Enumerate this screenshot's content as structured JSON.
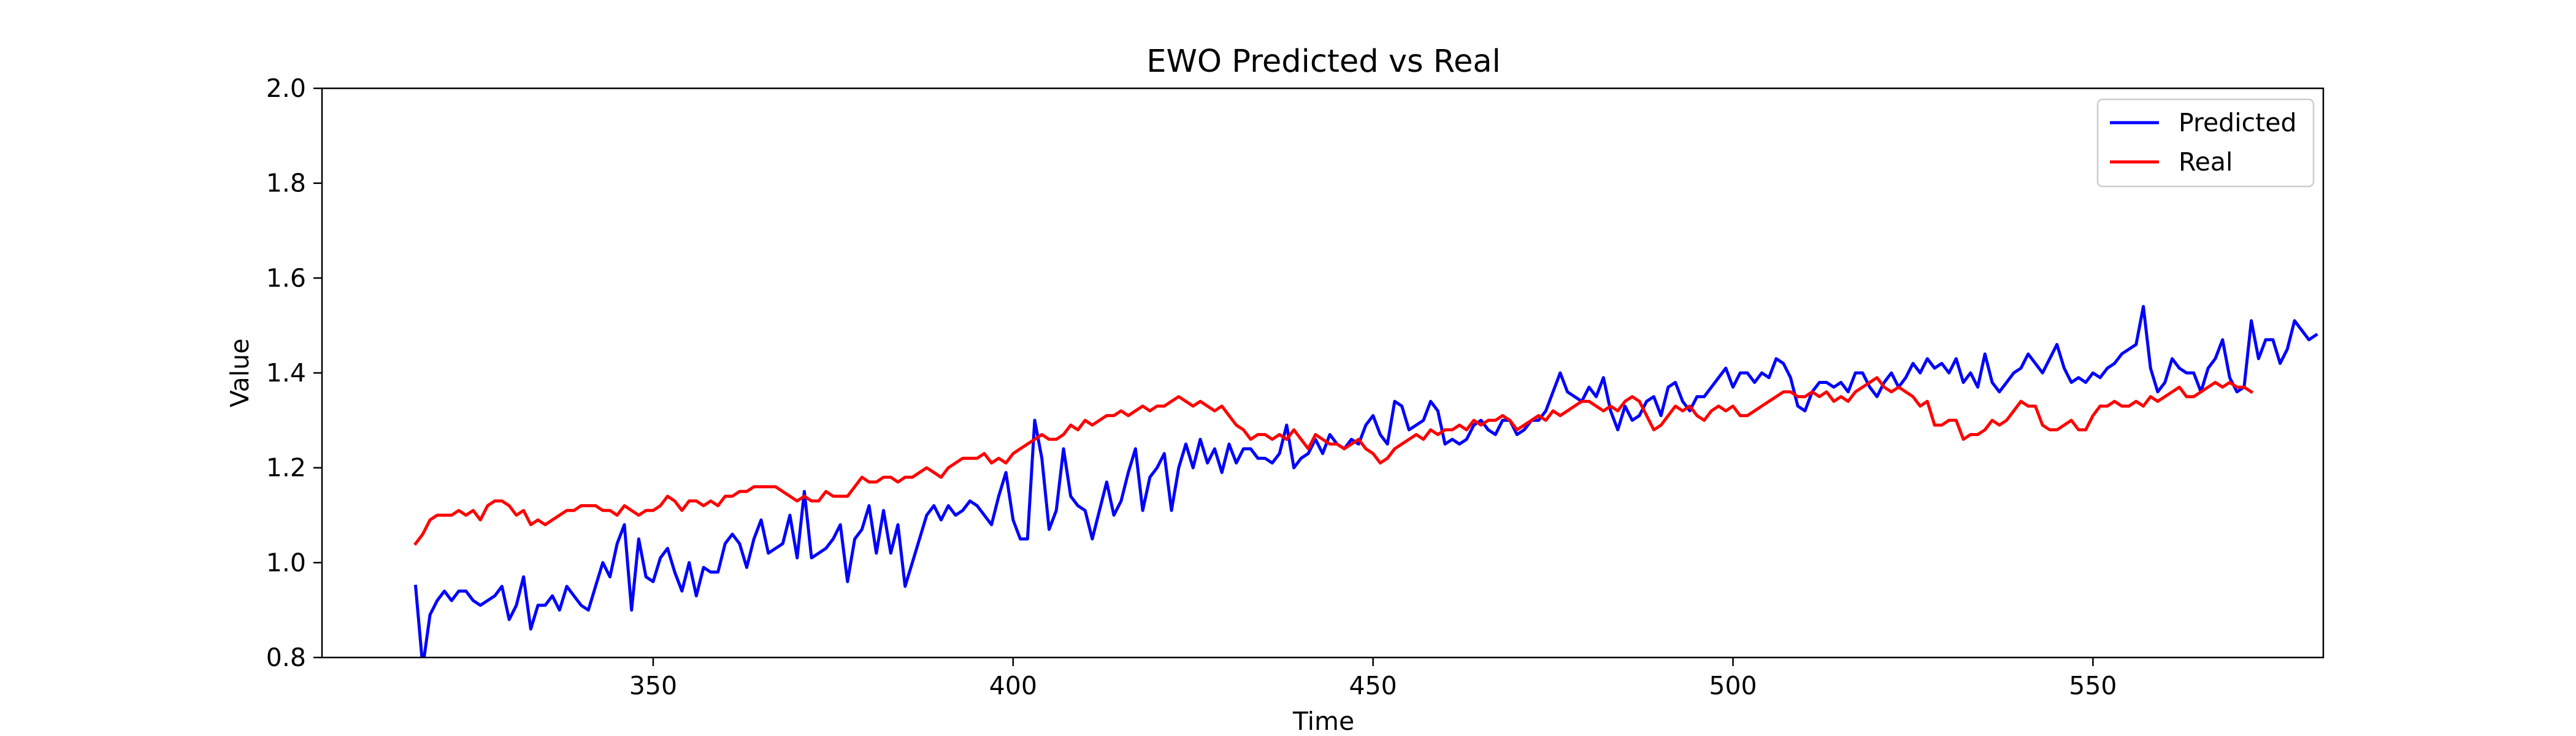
{
  "chart_data": {
    "type": "line",
    "title": "EWO Predicted vs Real",
    "xlabel": "Time",
    "ylabel": "Value",
    "xlim": [
      304,
      582
    ],
    "ylim": [
      0.8,
      2.0
    ],
    "xticks": [
      350,
      400,
      450,
      500,
      550
    ],
    "yticks": [
      0.8,
      1.0,
      1.2,
      1.4,
      1.6,
      1.8,
      2.0
    ],
    "grid": false,
    "legend_position": "top-right",
    "x_start": 317,
    "series": [
      {
        "name": "Predicted",
        "color": "#0000ff",
        "values": [
          0.95,
          0.78,
          0.89,
          0.92,
          0.94,
          0.92,
          0.94,
          0.94,
          0.92,
          0.91,
          0.92,
          0.93,
          0.95,
          0.88,
          0.91,
          0.97,
          0.86,
          0.91,
          0.91,
          0.93,
          0.9,
          0.95,
          0.93,
          0.91,
          0.9,
          0.95,
          1.0,
          0.97,
          1.04,
          1.08,
          0.9,
          1.05,
          0.97,
          0.96,
          1.01,
          1.03,
          0.98,
          0.94,
          1.0,
          0.93,
          0.99,
          0.98,
          0.98,
          1.04,
          1.06,
          1.04,
          0.99,
          1.05,
          1.09,
          1.02,
          1.03,
          1.04,
          1.1,
          1.01,
          1.15,
          1.01,
          1.02,
          1.03,
          1.05,
          1.08,
          0.96,
          1.05,
          1.07,
          1.12,
          1.02,
          1.11,
          1.02,
          1.08,
          0.95,
          1.0,
          1.05,
          1.1,
          1.12,
          1.09,
          1.12,
          1.1,
          1.11,
          1.13,
          1.12,
          1.1,
          1.08,
          1.14,
          1.19,
          1.09,
          1.05,
          1.05,
          1.3,
          1.22,
          1.07,
          1.11,
          1.24,
          1.14,
          1.12,
          1.11,
          1.05,
          1.11,
          1.17,
          1.1,
          1.13,
          1.19,
          1.24,
          1.11,
          1.18,
          1.2,
          1.23,
          1.11,
          1.2,
          1.25,
          1.2,
          1.26,
          1.21,
          1.24,
          1.19,
          1.25,
          1.21,
          1.24,
          1.24,
          1.22,
          1.22,
          1.21,
          1.23,
          1.29,
          1.2,
          1.22,
          1.23,
          1.26,
          1.23,
          1.27,
          1.25,
          1.24,
          1.26,
          1.25,
          1.29,
          1.31,
          1.27,
          1.25,
          1.34,
          1.33,
          1.28,
          1.29,
          1.3,
          1.34,
          1.32,
          1.25,
          1.26,
          1.25,
          1.26,
          1.29,
          1.3,
          1.28,
          1.27,
          1.3,
          1.3,
          1.27,
          1.28,
          1.3,
          1.3,
          1.32,
          1.36,
          1.4,
          1.36,
          1.35,
          1.34,
          1.37,
          1.35,
          1.39,
          1.32,
          1.28,
          1.33,
          1.3,
          1.31,
          1.34,
          1.35,
          1.31,
          1.37,
          1.38,
          1.34,
          1.32,
          1.35,
          1.35,
          1.37,
          1.39,
          1.41,
          1.37,
          1.4,
          1.4,
          1.38,
          1.4,
          1.39,
          1.43,
          1.42,
          1.39,
          1.33,
          1.32,
          1.36,
          1.38,
          1.38,
          1.37,
          1.38,
          1.36,
          1.4,
          1.4,
          1.37,
          1.35,
          1.38,
          1.4,
          1.37,
          1.39,
          1.42,
          1.4,
          1.43,
          1.41,
          1.42,
          1.4,
          1.43,
          1.38,
          1.4,
          1.37,
          1.44,
          1.38,
          1.36,
          1.38,
          1.4,
          1.41,
          1.44,
          1.42,
          1.4,
          1.43,
          1.46,
          1.41,
          1.38,
          1.39,
          1.38,
          1.4,
          1.39,
          1.41,
          1.42,
          1.44,
          1.45,
          1.46,
          1.54,
          1.41,
          1.36,
          1.38,
          1.43,
          1.41,
          1.4,
          1.4,
          1.36,
          1.41,
          1.43,
          1.47,
          1.39,
          1.36,
          1.37,
          1.51,
          1.43,
          1.47,
          1.47,
          1.42,
          1.45,
          1.51,
          1.49,
          1.47,
          1.48
        ]
      },
      {
        "name": "Real",
        "color": "#ff0000",
        "values": [
          1.04,
          1.06,
          1.09,
          1.1,
          1.1,
          1.1,
          1.11,
          1.1,
          1.11,
          1.09,
          1.12,
          1.13,
          1.13,
          1.12,
          1.1,
          1.11,
          1.08,
          1.09,
          1.08,
          1.09,
          1.1,
          1.11,
          1.11,
          1.12,
          1.12,
          1.12,
          1.11,
          1.11,
          1.1,
          1.12,
          1.11,
          1.1,
          1.11,
          1.11,
          1.12,
          1.14,
          1.13,
          1.11,
          1.13,
          1.13,
          1.12,
          1.13,
          1.12,
          1.14,
          1.14,
          1.15,
          1.15,
          1.16,
          1.16,
          1.16,
          1.16,
          1.15,
          1.14,
          1.13,
          1.14,
          1.13,
          1.13,
          1.15,
          1.14,
          1.14,
          1.14,
          1.16,
          1.18,
          1.17,
          1.17,
          1.18,
          1.18,
          1.17,
          1.18,
          1.18,
          1.19,
          1.2,
          1.19,
          1.18,
          1.2,
          1.21,
          1.22,
          1.22,
          1.22,
          1.23,
          1.21,
          1.22,
          1.21,
          1.23,
          1.24,
          1.25,
          1.26,
          1.27,
          1.26,
          1.26,
          1.27,
          1.29,
          1.28,
          1.3,
          1.29,
          1.3,
          1.31,
          1.31,
          1.32,
          1.31,
          1.32,
          1.33,
          1.32,
          1.33,
          1.33,
          1.34,
          1.35,
          1.34,
          1.33,
          1.34,
          1.33,
          1.32,
          1.33,
          1.31,
          1.29,
          1.28,
          1.26,
          1.27,
          1.27,
          1.26,
          1.27,
          1.26,
          1.28,
          1.26,
          1.24,
          1.27,
          1.26,
          1.25,
          1.25,
          1.24,
          1.25,
          1.26,
          1.24,
          1.23,
          1.21,
          1.22,
          1.24,
          1.25,
          1.26,
          1.27,
          1.26,
          1.28,
          1.27,
          1.28,
          1.28,
          1.29,
          1.28,
          1.3,
          1.29,
          1.3,
          1.3,
          1.31,
          1.3,
          1.28,
          1.29,
          1.3,
          1.31,
          1.3,
          1.32,
          1.31,
          1.32,
          1.33,
          1.34,
          1.34,
          1.33,
          1.32,
          1.33,
          1.32,
          1.34,
          1.35,
          1.34,
          1.31,
          1.28,
          1.29,
          1.31,
          1.33,
          1.32,
          1.33,
          1.31,
          1.3,
          1.32,
          1.33,
          1.32,
          1.33,
          1.31,
          1.31,
          1.32,
          1.33,
          1.34,
          1.35,
          1.36,
          1.36,
          1.35,
          1.35,
          1.36,
          1.35,
          1.36,
          1.34,
          1.35,
          1.34,
          1.36,
          1.37,
          1.38,
          1.39,
          1.37,
          1.36,
          1.37,
          1.36,
          1.35,
          1.33,
          1.34,
          1.29,
          1.29,
          1.3,
          1.3,
          1.26,
          1.27,
          1.27,
          1.28,
          1.3,
          1.29,
          1.3,
          1.32,
          1.34,
          1.33,
          1.33,
          1.29,
          1.28,
          1.28,
          1.29,
          1.3,
          1.28,
          1.28,
          1.31,
          1.33,
          1.33,
          1.34,
          1.33,
          1.33,
          1.34,
          1.33,
          1.35,
          1.34,
          1.35,
          1.36,
          1.37,
          1.35,
          1.35,
          1.36,
          1.37,
          1.38,
          1.37,
          1.38,
          1.37,
          1.37,
          1.36
        ]
      }
    ]
  }
}
